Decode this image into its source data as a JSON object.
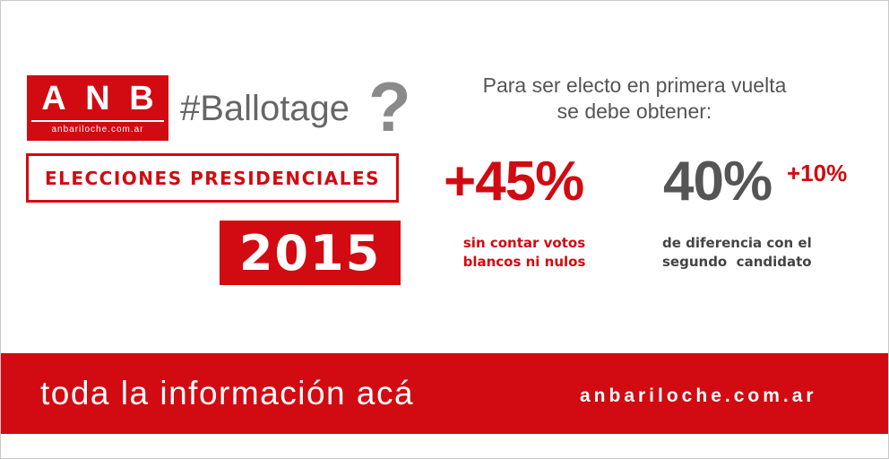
{
  "brand": {
    "letters": [
      "A",
      "N",
      "B"
    ],
    "domain": "anbariloche.com.ar",
    "color": "#d20a11"
  },
  "hashtag": "#Ballotage",
  "question_mark": "?",
  "elecciones": "ELECCIONES PRESIDENCIALES",
  "year": "2015",
  "requirement": {
    "title_line1": "Para ser electo en primera vuelta",
    "title_line2": "se debe obtener:"
  },
  "stat_a": {
    "value": "+45%",
    "caption_line1": "sin contar votos",
    "caption_line2": "blancos ni nulos"
  },
  "stat_b": {
    "value": "40%",
    "superscript": "+10%",
    "caption_line1": "de diferencia con el",
    "caption_line2": "segundo  candidato"
  },
  "footer": {
    "cta": "toda la información acá",
    "url": "anbariloche.com.ar"
  }
}
